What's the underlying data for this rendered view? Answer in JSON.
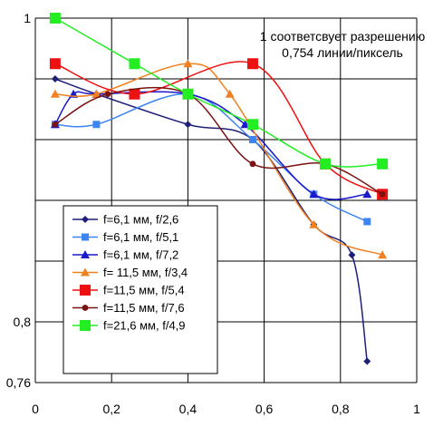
{
  "chart_data": {
    "type": "line",
    "title": "",
    "xlabel": "",
    "ylabel": "",
    "xlim": [
      0,
      1
    ],
    "ylim": [
      0.76,
      1
    ],
    "grid": true,
    "legend_position": "bottom-left",
    "x_ticks": [
      "0",
      "0,2",
      "0,4",
      "0,6",
      "0,8",
      "1"
    ],
    "y_ticks": [
      {
        "value": 1,
        "label": "1"
      },
      {
        "value": 0.8,
        "label": "0,8"
      },
      {
        "value": 0.76,
        "label": "0,76"
      }
    ],
    "annotation": [
      "1 соответсвует разрешению",
      "0,754 линии/пиксель"
    ],
    "series": [
      {
        "name": "f=6,1 мм, f/2,6",
        "color": "#1f1f7a",
        "marker": "diamond",
        "points": [
          [
            0.052,
            0.96
          ],
          [
            0.16,
            0.95
          ],
          [
            0.4,
            0.93
          ],
          [
            0.57,
            0.92
          ],
          [
            0.73,
            0.864
          ],
          [
            0.83,
            0.844
          ],
          [
            0.87,
            0.774
          ]
        ]
      },
      {
        "name": "f=6,1 мм, f/5,1",
        "color": "#3d85f0",
        "marker": "square",
        "points": [
          [
            0.052,
            0.93
          ],
          [
            0.16,
            0.93
          ],
          [
            0.4,
            0.95
          ],
          [
            0.57,
            0.92
          ],
          [
            0.73,
            0.884
          ],
          [
            0.87,
            0.866
          ]
        ]
      },
      {
        "name": "f=6,1 мм, f/7,2",
        "color": "#1a1acc",
        "marker": "triangle",
        "points": [
          [
            0.052,
            0.93
          ],
          [
            0.1,
            0.95
          ],
          [
            0.16,
            0.95
          ],
          [
            0.4,
            0.95
          ],
          [
            0.55,
            0.93
          ],
          [
            0.73,
            0.884
          ],
          [
            0.87,
            0.884
          ]
        ]
      },
      {
        "name": "f= 11,5 мм, f/3,4",
        "color": "#f08020",
        "marker": "triangle",
        "points": [
          [
            0.052,
            0.95
          ],
          [
            0.16,
            0.95
          ],
          [
            0.4,
            0.97
          ],
          [
            0.51,
            0.95
          ],
          [
            0.73,
            0.864
          ],
          [
            0.91,
            0.844
          ]
        ]
      },
      {
        "name": "f=11,5 мм, f/5,4",
        "color": "#ee1111",
        "marker": "square",
        "points": [
          [
            0.052,
            0.97
          ],
          [
            0.26,
            0.95
          ],
          [
            0.57,
            0.97
          ],
          [
            0.76,
            0.904
          ],
          [
            0.91,
            0.884
          ]
        ]
      },
      {
        "name": "f=11,5 мм, f/7,6",
        "color": "#7a1212",
        "marker": "circle",
        "points": [
          [
            0.052,
            0.93
          ],
          [
            0.19,
            0.95
          ],
          [
            0.4,
            0.95
          ],
          [
            0.57,
            0.904
          ],
          [
            0.76,
            0.904
          ],
          [
            0.91,
            0.884
          ]
        ]
      },
      {
        "name": "f=21,6 мм, f/4,9",
        "color": "#22ee22",
        "marker": "square",
        "points": [
          [
            0.052,
            1
          ],
          [
            0.26,
            0.97
          ],
          [
            0.4,
            0.95
          ],
          [
            0.57,
            0.93
          ],
          [
            0.76,
            0.904
          ],
          [
            0.91,
            0.904
          ]
        ]
      }
    ]
  }
}
